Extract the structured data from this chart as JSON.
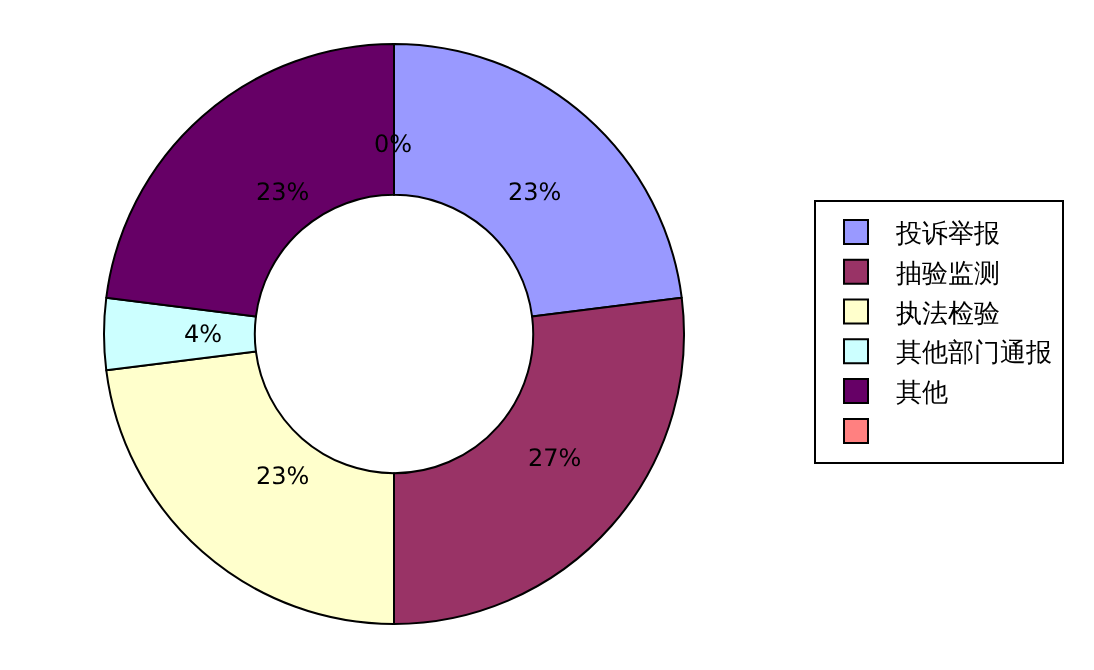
{
  "chart_data": {
    "type": "donut",
    "categories": [
      "投诉举报",
      "抽验监测",
      "执法检验",
      "其他部门通报",
      "其他",
      null
    ],
    "values": [
      23,
      27,
      23,
      4,
      23,
      0
    ],
    "colors": [
      "#9999ff",
      "#993366",
      "#ffffcc",
      "#ccffff",
      "#660066",
      "#ff8080"
    ],
    "value_labels": [
      "23%",
      "27%",
      "23%",
      "4%",
      "23%",
      "0%"
    ],
    "legend": "right"
  }
}
